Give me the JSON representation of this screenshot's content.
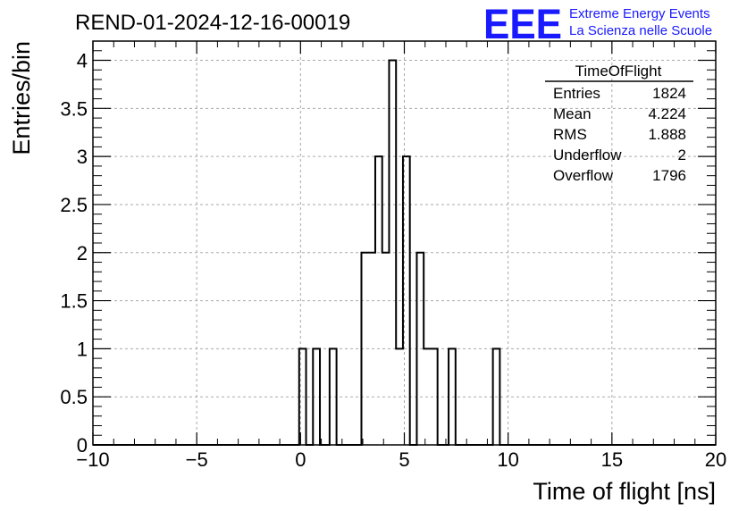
{
  "title": "REND-01-2024-12-16-00019",
  "logo": {
    "mark": "EEE",
    "line1": "Extreme Energy Events",
    "line2": "La Scienza nelle Scuole",
    "color": "#1a1aff"
  },
  "stats": {
    "name": "TimeOfFlight",
    "rows": [
      {
        "label": "Entries",
        "value": "1824"
      },
      {
        "label": "Mean",
        "value": "4.224"
      },
      {
        "label": "RMS",
        "value": "1.888"
      },
      {
        "label": "Underflow",
        "value": "2"
      },
      {
        "label": "Overflow",
        "value": "1796"
      }
    ]
  },
  "chart_data": {
    "type": "bar",
    "style": "step-histogram",
    "xlabel": "Time of flight [ns]",
    "ylabel": "Entries/bin",
    "xlim": [
      -10,
      20
    ],
    "ylim": [
      0,
      4.2
    ],
    "grid": true,
    "x_ticks": [
      "−10",
      "−5",
      "0",
      "5",
      "10",
      "15",
      "20"
    ],
    "y_ticks": [
      "0",
      "0.5",
      "1",
      "1.5",
      "2",
      "2.5",
      "3",
      "3.5",
      "4"
    ],
    "bin_width": 0.3333,
    "bins": [
      {
        "x": -0.0667,
        "y": 1
      },
      {
        "x": 0.6,
        "y": 1
      },
      {
        "x": 1.4,
        "y": 1
      },
      {
        "x": 2.9333,
        "y": 2
      },
      {
        "x": 3.2667,
        "y": 2
      },
      {
        "x": 3.6,
        "y": 3
      },
      {
        "x": 3.9333,
        "y": 2
      },
      {
        "x": 4.2667,
        "y": 4
      },
      {
        "x": 4.6,
        "y": 1
      },
      {
        "x": 4.9333,
        "y": 3
      },
      {
        "x": 5.6,
        "y": 2
      },
      {
        "x": 5.9333,
        "y": 1
      },
      {
        "x": 6.2667,
        "y": 1
      },
      {
        "x": 7.1333,
        "y": 1
      },
      {
        "x": 9.2667,
        "y": 1
      }
    ]
  }
}
